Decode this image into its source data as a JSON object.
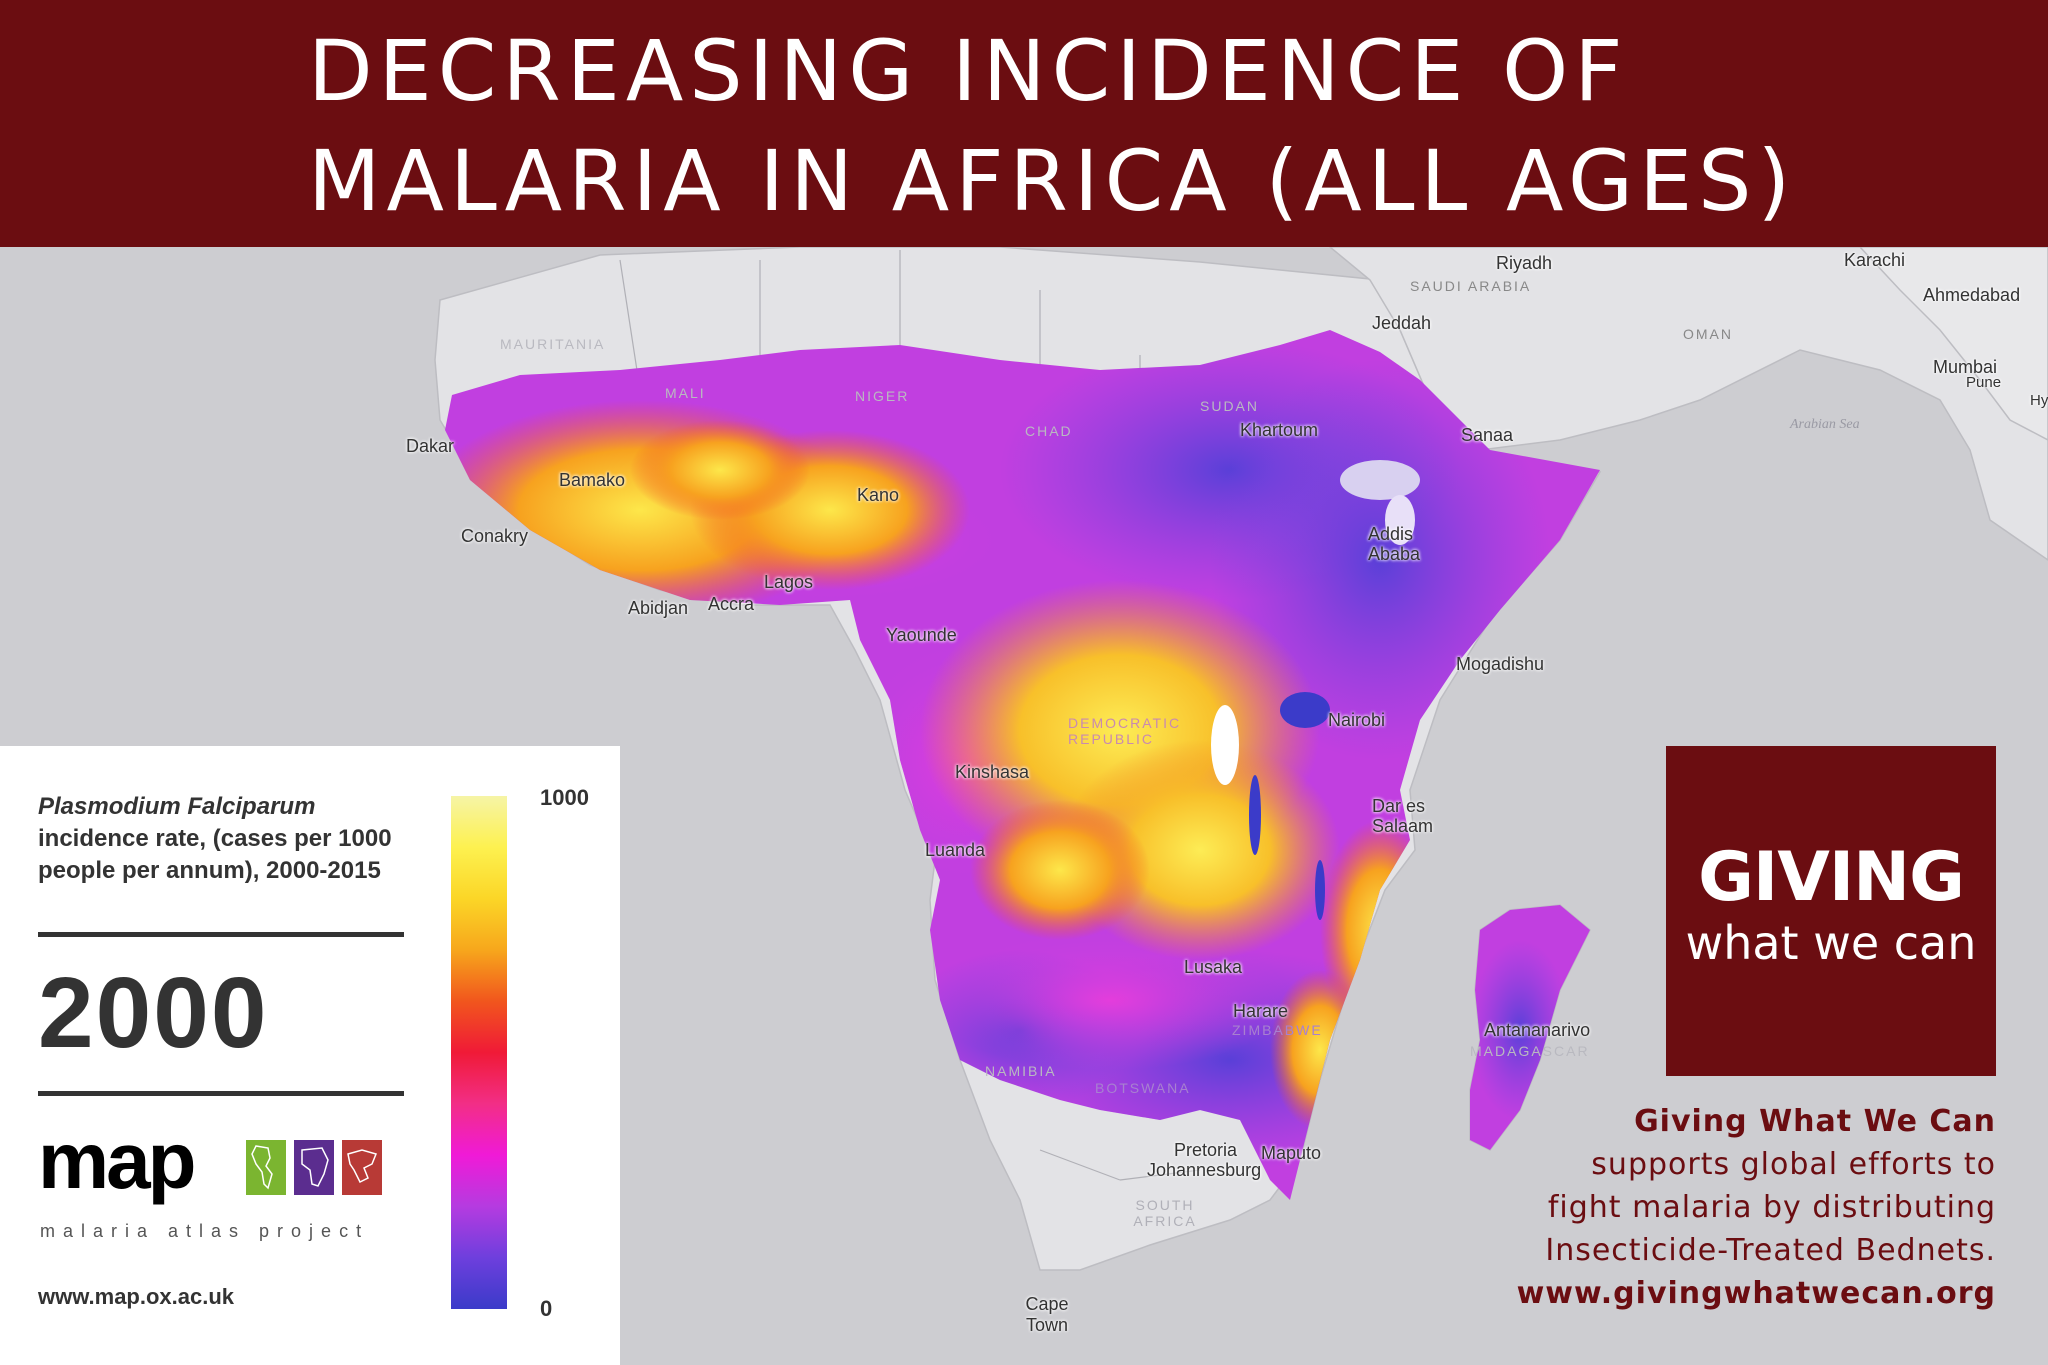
{
  "header": {
    "title_line1": "DECREASING INCIDENCE OF",
    "title_line2": "MALARIA IN AFRICA (ALL AGES)"
  },
  "map": {
    "cities": [
      {
        "name": "Riyadh"
      },
      {
        "name": "Jeddah"
      },
      {
        "name": "Karachi"
      },
      {
        "name": "Ahmedabad"
      },
      {
        "name": "Mumbai"
      },
      {
        "name": "Pune"
      },
      {
        "name": "Hy"
      },
      {
        "name": "Sanaa"
      },
      {
        "name": "Khartoum"
      },
      {
        "name": "Dakar"
      },
      {
        "name": "Bamako"
      },
      {
        "name": "Conakry"
      },
      {
        "name": "Kano"
      },
      {
        "name": "Lagos"
      },
      {
        "name": "Abidjan"
      },
      {
        "name": "Accra"
      },
      {
        "name": "Addis Ababa"
      },
      {
        "name": "Yaounde"
      },
      {
        "name": "Mogadishu"
      },
      {
        "name": "Nairobi"
      },
      {
        "name": "Kinshasa"
      },
      {
        "name": "Dar es Salaam"
      },
      {
        "name": "Luanda"
      },
      {
        "name": "Lusaka"
      },
      {
        "name": "Harare"
      },
      {
        "name": "Antananarivo"
      },
      {
        "name": "Pretoria"
      },
      {
        "name": "Johannesburg"
      },
      {
        "name": "Maputo"
      },
      {
        "name": "Cape Town"
      }
    ],
    "countries": [
      "SAUDI ARABIA",
      "OMAN",
      "MAURITANIA",
      "MALI",
      "NIGER",
      "CHAD",
      "SUDAN",
      "DEMOCRATIC REPUBLIC",
      "ZIMBABWE",
      "BOTSWANA",
      "NAMIBIA",
      "MADAGASCAR",
      "SOUTH AFRICA"
    ],
    "seas": [
      "Arabian Sea"
    ]
  },
  "legend": {
    "title_italic": "Plasmodium Falciparum",
    "title_rest": "incidence rate, (cases per 1000 people per annum), 2000-2015",
    "year": "2000",
    "logo_text": "map",
    "logo_sub": "malaria atlas project",
    "url": "www.map.ox.ac.uk",
    "scale_max": "1000",
    "scale_min": "0",
    "colorbar_colors": [
      "#f6f4a6",
      "#fdf150",
      "#fbd627",
      "#f7a71c",
      "#f1561d",
      "#f01a37",
      "#f22e86",
      "#f01ad7",
      "#b53be0",
      "#6e3fdd",
      "#3b3bc9"
    ]
  },
  "gwwc": {
    "logo_line1": "GIVING",
    "logo_line2": "what we can",
    "org": "Giving What We Can",
    "line1": "supports  global efforts to",
    "line2": "fight malaria by distributing",
    "line3": "Insecticide-Treated Bednets.",
    "url": "www.givingwhatwecan.org"
  },
  "colors": {
    "brand": "#6b0d11",
    "ocean": "#cdcdd1",
    "land": "#e3e3e6"
  }
}
